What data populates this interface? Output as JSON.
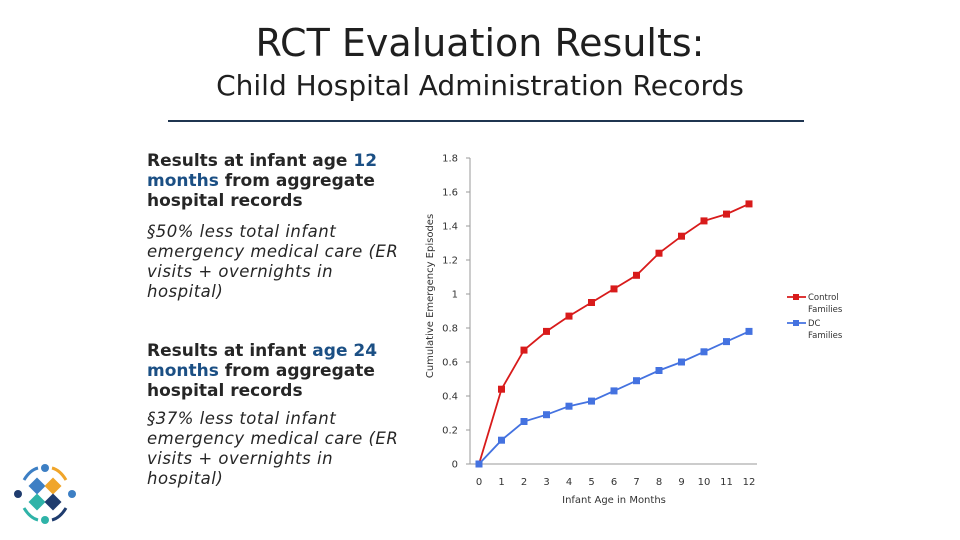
{
  "slide": {
    "title": "RCT Evaluation Results:",
    "subtitle": "Child Hospital Administration Records"
  },
  "left": {
    "block1": {
      "pre": "Results at infant age ",
      "age": "12",
      "newline": " ",
      "months": "months",
      "post": " from aggregate hospital records"
    },
    "bullet1": "§50% less total infant emergency medical care (ER visits + overnights in hospital)",
    "block2": {
      "pre": "Results at infant ",
      "age": "age 24",
      "newline": " ",
      "months": "months",
      "post": " from aggregate hospital records"
    },
    "bullet2": "§37% less total infant emergency medical care (ER visits + overnights in hospital)"
  },
  "colors": {
    "control": "#d81b1b",
    "dc": "#4472e0",
    "axis": "#9a9a9a",
    "logo_blue": "#3d7fc4",
    "logo_orange": "#f0a52a",
    "logo_teal": "#2fb3a8",
    "logo_navy": "#1f3c6e"
  },
  "chart_data": {
    "type": "line",
    "title": "",
    "xlabel": "Infant Age in Months",
    "ylabel": "Cumulative Emergency Episodes",
    "x": [
      0,
      1,
      2,
      3,
      4,
      5,
      6,
      7,
      8,
      9,
      10,
      11,
      12
    ],
    "xtick_labels": [
      "0",
      "1",
      "2",
      "3",
      "4",
      "5",
      "6",
      "7",
      "8",
      "9",
      "10",
      "11",
      "12"
    ],
    "ylim": [
      0,
      1.8
    ],
    "yticks": [
      0,
      0.2,
      0.4,
      0.6,
      0.8,
      1,
      1.2,
      1.4,
      1.6,
      1.8
    ],
    "ytick_labels": [
      "0",
      "0.2",
      "0.4",
      "0.6",
      "0.8",
      "1",
      "1.2",
      "1.4",
      "1.6",
      "1.8"
    ],
    "legend_position": "right",
    "series": [
      {
        "name": "Control Families",
        "legend_lines": [
          "Control",
          "Families"
        ],
        "color_key": "control",
        "values": [
          0,
          0.44,
          0.67,
          0.78,
          0.87,
          0.95,
          1.03,
          1.11,
          1.24,
          1.34,
          1.43,
          1.47,
          1.53
        ]
      },
      {
        "name": "DC Families",
        "legend_lines": [
          "DC",
          "Families"
        ],
        "color_key": "dc",
        "values": [
          0,
          0.14,
          0.25,
          0.29,
          0.34,
          0.37,
          0.43,
          0.49,
          0.55,
          0.6,
          0.66,
          0.72,
          0.78
        ]
      }
    ]
  }
}
